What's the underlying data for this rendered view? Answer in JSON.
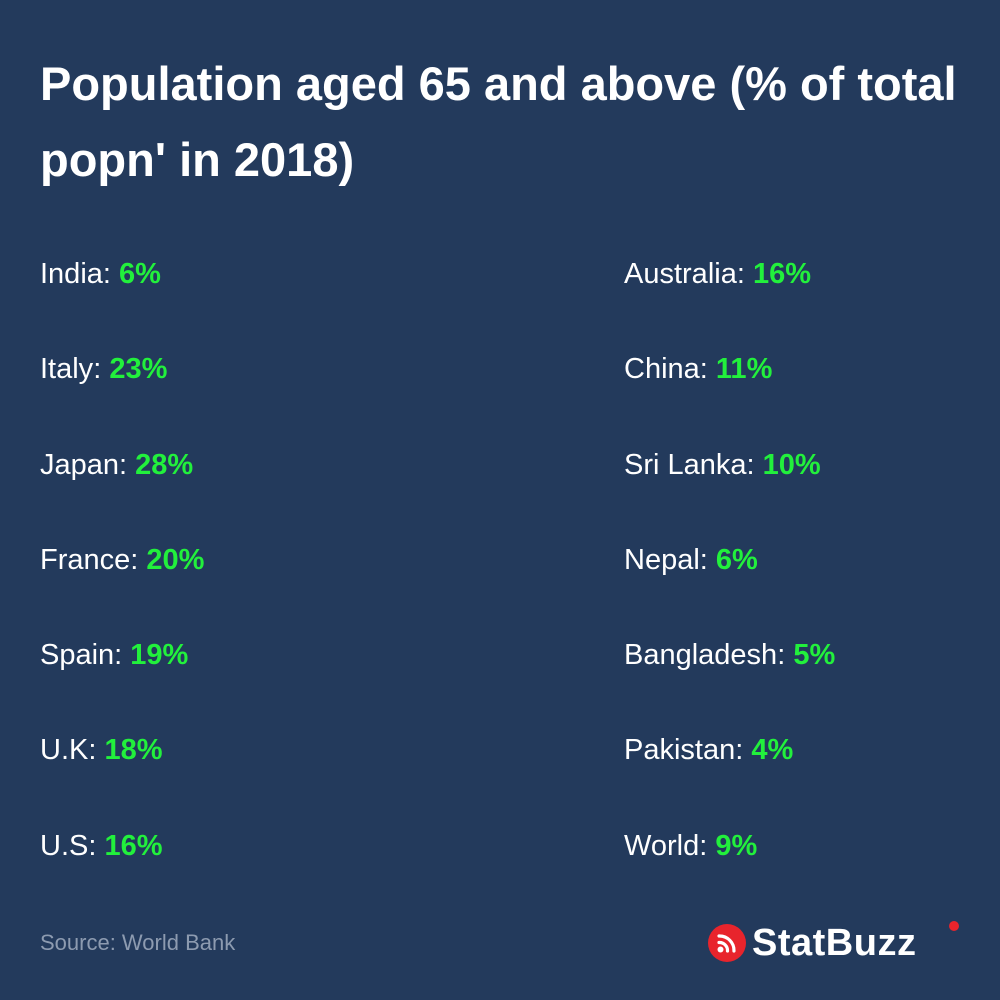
{
  "title": "Population aged 65 and above (% of total popn' in 2018)",
  "left_column": [
    {
      "country": "India",
      "value": "6%"
    },
    {
      "country": "Italy",
      "value": "23%"
    },
    {
      "country": "Japan",
      "value": "28%"
    },
    {
      "country": "France",
      "value": "20%"
    },
    {
      "country": "Spain",
      "value": "19%"
    },
    {
      "country": "U.K",
      "value": "18%"
    },
    {
      "country": "U.S",
      "value": "16%"
    }
  ],
  "right_column": [
    {
      "country": "Australia",
      "value": "16%"
    },
    {
      "country": "China",
      "value": "11%"
    },
    {
      "country": "Sri Lanka",
      "value": "10%"
    },
    {
      "country": "Nepal",
      "value": "6%"
    },
    {
      "country": "Bangladesh",
      "value": "5%"
    },
    {
      "country": "Pakistan",
      "value": "4%"
    },
    {
      "country": "World",
      "value": "9%"
    }
  ],
  "source": "Source: World Bank",
  "brand": {
    "name": "StatBuzz",
    "icon": "rss-feed-icon",
    "accent_color": "#e8242c"
  },
  "colors": {
    "background": "#233a5c",
    "value": "#22f03c",
    "text": "#ffffff",
    "source": "#8d9bb0"
  }
}
